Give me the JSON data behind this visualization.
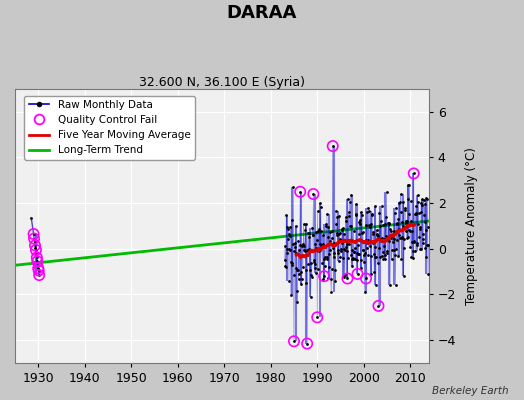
{
  "title": "DARAA",
  "subtitle": "32.600 N, 36.100 E (Syria)",
  "ylabel": "Temperature Anomaly (°C)",
  "credit": "Berkeley Earth",
  "xlim": [
    1925,
    2014
  ],
  "ylim": [
    -5.0,
    7.0
  ],
  "yticks": [
    -4,
    -2,
    0,
    2,
    4,
    6
  ],
  "xticks": [
    1930,
    1940,
    1950,
    1960,
    1970,
    1980,
    1990,
    2000,
    2010
  ],
  "bg_color": "#c8c8c8",
  "plot_bg_color": "#f0f0f0",
  "grid_color": "#ffffff",
  "raw_line_color": "#0000cc",
  "raw_dot_color": "#000000",
  "qc_fail_color": "#ff00ff",
  "moving_avg_color": "#dd0000",
  "trend_color": "#00bb00",
  "trend_x": [
    1925,
    2014
  ],
  "trend_y": [
    -0.72,
    1.22
  ]
}
